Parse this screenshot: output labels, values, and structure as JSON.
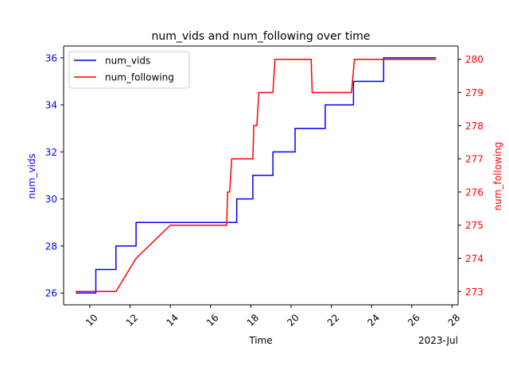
{
  "chart_data": {
    "type": "line",
    "title": "num_vids and num_following over time",
    "xlabel": "Time",
    "x_offset_label": "2023-Jul",
    "x_ticks": [
      10,
      12,
      14,
      16,
      18,
      20,
      22,
      24,
      26,
      28
    ],
    "xlim": [
      8.7,
      28.3
    ],
    "grid": false,
    "legend_position": "top-left",
    "axes": {
      "left": {
        "label": "num_vids",
        "color": "#0000ff",
        "ylim": [
          25.5,
          36.5
        ],
        "ticks": [
          26,
          28,
          30,
          32,
          34,
          36
        ]
      },
      "right": {
        "label": "num_following",
        "color": "#ff0000",
        "ylim": [
          272.6,
          280.4
        ],
        "ticks": [
          273,
          274,
          275,
          276,
          277,
          278,
          279,
          280
        ]
      }
    },
    "series": [
      {
        "name": "num_vids",
        "axis": "left",
        "color": "#0000ff",
        "style": "step",
        "points": [
          [
            9.3,
            26
          ],
          [
            10.3,
            26
          ],
          [
            10.3,
            27
          ],
          [
            11.3,
            27
          ],
          [
            11.3,
            28
          ],
          [
            12.3,
            28
          ],
          [
            12.3,
            29
          ],
          [
            17.3,
            29
          ],
          [
            17.3,
            30
          ],
          [
            18.1,
            30
          ],
          [
            18.1,
            31
          ],
          [
            19.1,
            31
          ],
          [
            19.1,
            32
          ],
          [
            20.2,
            32
          ],
          [
            20.2,
            33
          ],
          [
            21.7,
            33
          ],
          [
            21.7,
            34
          ],
          [
            23.1,
            34
          ],
          [
            23.1,
            35
          ],
          [
            24.6,
            35
          ],
          [
            24.6,
            36
          ],
          [
            27.2,
            36
          ]
        ]
      },
      {
        "name": "num_following",
        "axis": "right",
        "color": "#ff0000",
        "style": "line",
        "points": [
          [
            9.3,
            273
          ],
          [
            11.3,
            273
          ],
          [
            12.3,
            274
          ],
          [
            14.0,
            275
          ],
          [
            16.8,
            275
          ],
          [
            16.85,
            276
          ],
          [
            16.95,
            276
          ],
          [
            17.05,
            277
          ],
          [
            18.1,
            277
          ],
          [
            18.15,
            278
          ],
          [
            18.3,
            278
          ],
          [
            18.4,
            279
          ],
          [
            19.1,
            279
          ],
          [
            19.2,
            280
          ],
          [
            21.0,
            280
          ],
          [
            21.05,
            279
          ],
          [
            23.0,
            279
          ],
          [
            23.15,
            280
          ],
          [
            27.2,
            280
          ]
        ]
      }
    ]
  }
}
